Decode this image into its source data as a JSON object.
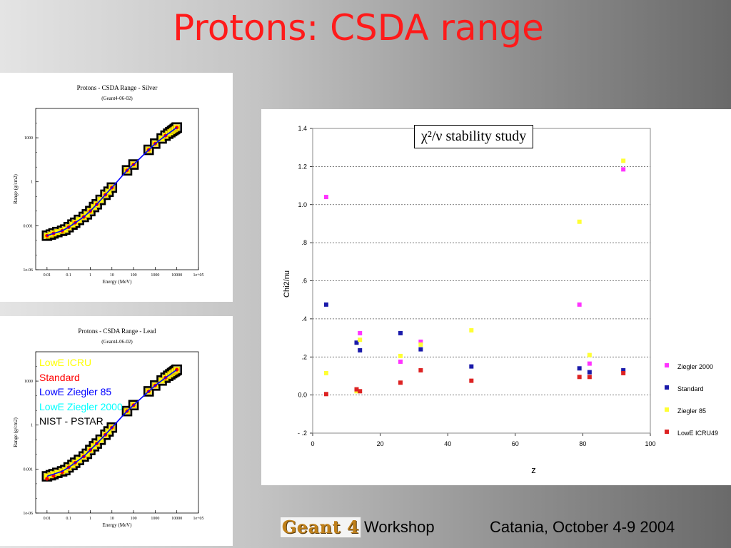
{
  "slide": {
    "title": "Protons: CSDA range",
    "footer": {
      "logo_text": "Geant 4",
      "workshop": "Workshop",
      "date": "Catania, October 4-9 2004"
    }
  },
  "chart_data": [
    {
      "id": "silver",
      "type": "scatter",
      "title": "Protons - CSDA Range - Silver",
      "subtitle": "(Geant4-06-02)",
      "xlabel": "Energy (MeV)",
      "ylabel": "Range (g/cm2)",
      "xscale": "log",
      "yscale": "log",
      "xlim": [
        0.003,
        100000
      ],
      "ylim": [
        1e-06,
        100000
      ],
      "xticks": [
        0.01,
        0.1,
        1,
        10,
        100,
        1000,
        10000,
        100000
      ],
      "xtick_labels": [
        "0.01",
        "0.1",
        "1",
        "10",
        "100",
        "1000",
        "10000",
        "1e+05"
      ],
      "yticks": [
        1e-06,
        0.001,
        1,
        1000
      ],
      "ytick_labels": [
        "1e-06",
        "0.001",
        "1",
        "1000"
      ],
      "series": [
        {
          "color": "#000000",
          "marker": "square-outline",
          "x": [
            0.01,
            0.015,
            0.02,
            0.03,
            0.05,
            0.07,
            0.1,
            0.15,
            0.2,
            0.3,
            0.5,
            0.7,
            1,
            1.5,
            2,
            3,
            5,
            7,
            10,
            50,
            100,
            500,
            1000,
            2000,
            3000,
            4000,
            5000,
            6000,
            7000,
            8000,
            9000,
            10000
          ],
          "y": [
            0.00021,
            0.00025,
            0.0003,
            0.00037,
            0.00045,
            0.00055,
            0.0008,
            0.0012,
            0.0016,
            0.0025,
            0.004,
            0.006,
            0.01,
            0.019,
            0.029,
            0.058,
            0.13,
            0.21,
            0.4,
            6,
            15,
            150,
            400,
            900,
            1400,
            1900,
            2400,
            2900,
            3400,
            3900,
            4400,
            5000
          ]
        },
        {
          "color": "#ffff00",
          "marker": "square-fill",
          "x": [
            0.01,
            0.015,
            0.02,
            0.03,
            0.05,
            0.07,
            0.1,
            0.15,
            0.2,
            0.3,
            0.5,
            0.7,
            1,
            1.5,
            2,
            3,
            5,
            7,
            10,
            50,
            100,
            500,
            1000,
            2000,
            3000,
            4000,
            5000,
            6000,
            7000,
            8000,
            9000,
            10000
          ],
          "y": [
            0.00021,
            0.00025,
            0.0003,
            0.00037,
            0.00045,
            0.00055,
            0.0008,
            0.0012,
            0.0016,
            0.0025,
            0.004,
            0.006,
            0.01,
            0.019,
            0.029,
            0.058,
            0.13,
            0.21,
            0.4,
            6,
            15,
            150,
            400,
            900,
            1400,
            1900,
            2400,
            2900,
            3400,
            3900,
            4400,
            5000
          ]
        },
        {
          "color": "#ff0000",
          "marker": "dot",
          "x": [
            0.01,
            0.02,
            0.05,
            0.1,
            0.2,
            0.5,
            1,
            2,
            5,
            10,
            50,
            100,
            500,
            1000,
            3000,
            10000
          ],
          "y": [
            0.00021,
            0.0003,
            0.00045,
            0.0008,
            0.0016,
            0.004,
            0.01,
            0.029,
            0.13,
            0.4,
            6,
            15,
            150,
            400,
            1400,
            5000
          ]
        },
        {
          "color": "#0000ff",
          "marker": "line",
          "x": [
            0.01,
            0.02,
            0.05,
            0.1,
            0.2,
            0.5,
            1,
            2,
            5,
            10,
            50,
            100,
            500,
            1000,
            3000,
            10000
          ],
          "y": [
            0.00021,
            0.0003,
            0.00045,
            0.0008,
            0.0016,
            0.004,
            0.01,
            0.029,
            0.13,
            0.4,
            6,
            15,
            150,
            400,
            1400,
            5000
          ]
        }
      ]
    },
    {
      "id": "lead",
      "type": "scatter",
      "title": "Protons - CSDA Range - Lead",
      "subtitle": "(Geant4-06-02)",
      "xlabel": "Energy (MeV)",
      "ylabel": "Range (g/cm2)",
      "xscale": "log",
      "yscale": "log",
      "xlim": [
        0.003,
        100000
      ],
      "ylim": [
        1e-06,
        100000
      ],
      "xticks": [
        0.01,
        0.1,
        1,
        10,
        100,
        1000,
        10000,
        100000
      ],
      "xtick_labels": [
        "0.01",
        "0.1",
        "1",
        "10",
        "100",
        "1000",
        "10000",
        "1e+05"
      ],
      "yticks": [
        1e-06,
        0.001,
        1,
        1000
      ],
      "ytick_labels": [
        "1e-06",
        "0.001",
        "1",
        "1000"
      ],
      "legend": [
        {
          "name": "LowE ICRU",
          "color": "#ffff00"
        },
        {
          "name": "Standard",
          "color": "#ff0000"
        },
        {
          "name": "LowE Ziegler 85",
          "color": "#0000ff"
        },
        {
          "name": "LowE Ziegler 2000",
          "color": "#00ffff"
        },
        {
          "name": "NIST - PSTAR",
          "color": "#000000"
        }
      ],
      "series": [
        {
          "color": "#000000",
          "marker": "square-outline",
          "x": [
            0.01,
            0.015,
            0.02,
            0.03,
            0.05,
            0.07,
            0.1,
            0.15,
            0.2,
            0.3,
            0.5,
            0.7,
            1,
            1.5,
            2,
            3,
            5,
            7,
            10,
            50,
            100,
            500,
            1000,
            2000,
            3000,
            4000,
            5000,
            6000,
            7000,
            8000,
            9000,
            10000
          ],
          "y": [
            0.00032,
            0.00038,
            0.00045,
            0.00055,
            0.0007,
            0.00085,
            0.0013,
            0.0019,
            0.0027,
            0.0042,
            0.0072,
            0.011,
            0.02,
            0.036,
            0.055,
            0.1,
            0.22,
            0.37,
            0.68,
            9,
            23,
            200,
            500,
            1100,
            1700,
            2300,
            2900,
            3500,
            4100,
            4700,
            5300,
            6000
          ]
        },
        {
          "color": "#ffff00",
          "marker": "square-fill",
          "x": [
            0.01,
            0.015,
            0.02,
            0.03,
            0.05,
            0.07,
            0.1,
            0.15,
            0.2,
            0.3,
            0.5,
            0.7,
            1,
            1.5,
            2,
            3,
            5,
            7,
            10,
            50,
            100,
            500,
            1000,
            2000,
            3000,
            4000,
            5000,
            6000,
            7000,
            8000,
            9000,
            10000
          ],
          "y": [
            0.00032,
            0.00038,
            0.00045,
            0.00055,
            0.0007,
            0.00085,
            0.0013,
            0.0019,
            0.0027,
            0.0042,
            0.0072,
            0.011,
            0.02,
            0.036,
            0.055,
            0.1,
            0.22,
            0.37,
            0.68,
            9,
            23,
            200,
            500,
            1100,
            1700,
            2300,
            2900,
            3500,
            4100,
            4700,
            5300,
            6000
          ]
        },
        {
          "color": "#ff0000",
          "marker": "dot",
          "x": [
            0.01,
            0.02,
            0.05,
            0.1,
            0.2,
            0.5,
            1,
            2,
            5,
            10,
            50,
            100,
            500,
            1000,
            3000,
            10000
          ],
          "y": [
            0.00022,
            0.00035,
            0.00062,
            0.0013,
            0.0027,
            0.0072,
            0.02,
            0.055,
            0.22,
            0.68,
            9,
            23,
            200,
            500,
            1700,
            6000
          ]
        },
        {
          "color": "#0000ff",
          "marker": "line",
          "x": [
            0.01,
            0.02,
            0.05,
            0.1,
            0.2,
            0.5,
            1,
            2,
            5,
            10,
            50,
            100,
            500,
            1000,
            3000,
            10000
          ],
          "y": [
            0.00032,
            0.00045,
            0.0007,
            0.0013,
            0.0027,
            0.0072,
            0.02,
            0.055,
            0.22,
            0.68,
            9,
            23,
            200,
            500,
            1700,
            6000
          ]
        }
      ]
    },
    {
      "id": "chi2",
      "type": "scatter",
      "title": "χ²/ν stability study",
      "xlabel": "z",
      "ylabel": "Chi2/nu",
      "xlim": [
        0,
        100
      ],
      "ylim": [
        -0.2,
        1.4
      ],
      "xticks": [
        0,
        20,
        40,
        60,
        80,
        100
      ],
      "xtick_labels": [
        "0",
        "20",
        "40",
        "60",
        "80",
        "100"
      ],
      "yticks": [
        -0.2,
        0,
        0.2,
        0.4,
        0.6,
        0.8,
        1.0,
        1.2,
        1.4
      ],
      "ytick_labels": [
        "- .2",
        "0.0",
        ".2",
        ".4",
        ".6",
        ".8",
        "1.0",
        "1.2",
        "1.4"
      ],
      "grid": "horizontal-dashed",
      "legend_position": "right",
      "series": [
        {
          "name": "Ziegler 2000",
          "color": "#ff33ff",
          "x": [
            4,
            14,
            26,
            32,
            79,
            82,
            92
          ],
          "y": [
            1.04,
            0.325,
            0.175,
            0.28,
            0.475,
            0.165,
            1.185
          ]
        },
        {
          "name": "Standard",
          "color": "#1a1aaa",
          "x": [
            4,
            13,
            14,
            26,
            32,
            47,
            79,
            82,
            92
          ],
          "y": [
            0.475,
            0.275,
            0.235,
            0.325,
            0.24,
            0.15,
            0.14,
            0.12,
            0.13
          ]
        },
        {
          "name": "Ziegler 85",
          "color": "#ffff33",
          "x": [
            4,
            13,
            14,
            26,
            32,
            47,
            79,
            82,
            92
          ],
          "y": [
            0.115,
            0.02,
            0.29,
            0.205,
            0.265,
            0.34,
            0.91,
            0.21,
            1.23
          ]
        },
        {
          "name": "LowE ICRU49",
          "color": "#dd2222",
          "x": [
            4,
            13,
            14,
            26,
            32,
            47,
            79,
            82,
            92
          ],
          "y": [
            0.005,
            0.03,
            0.02,
            0.065,
            0.13,
            0.075,
            0.095,
            0.095,
            0.115
          ]
        }
      ]
    }
  ]
}
